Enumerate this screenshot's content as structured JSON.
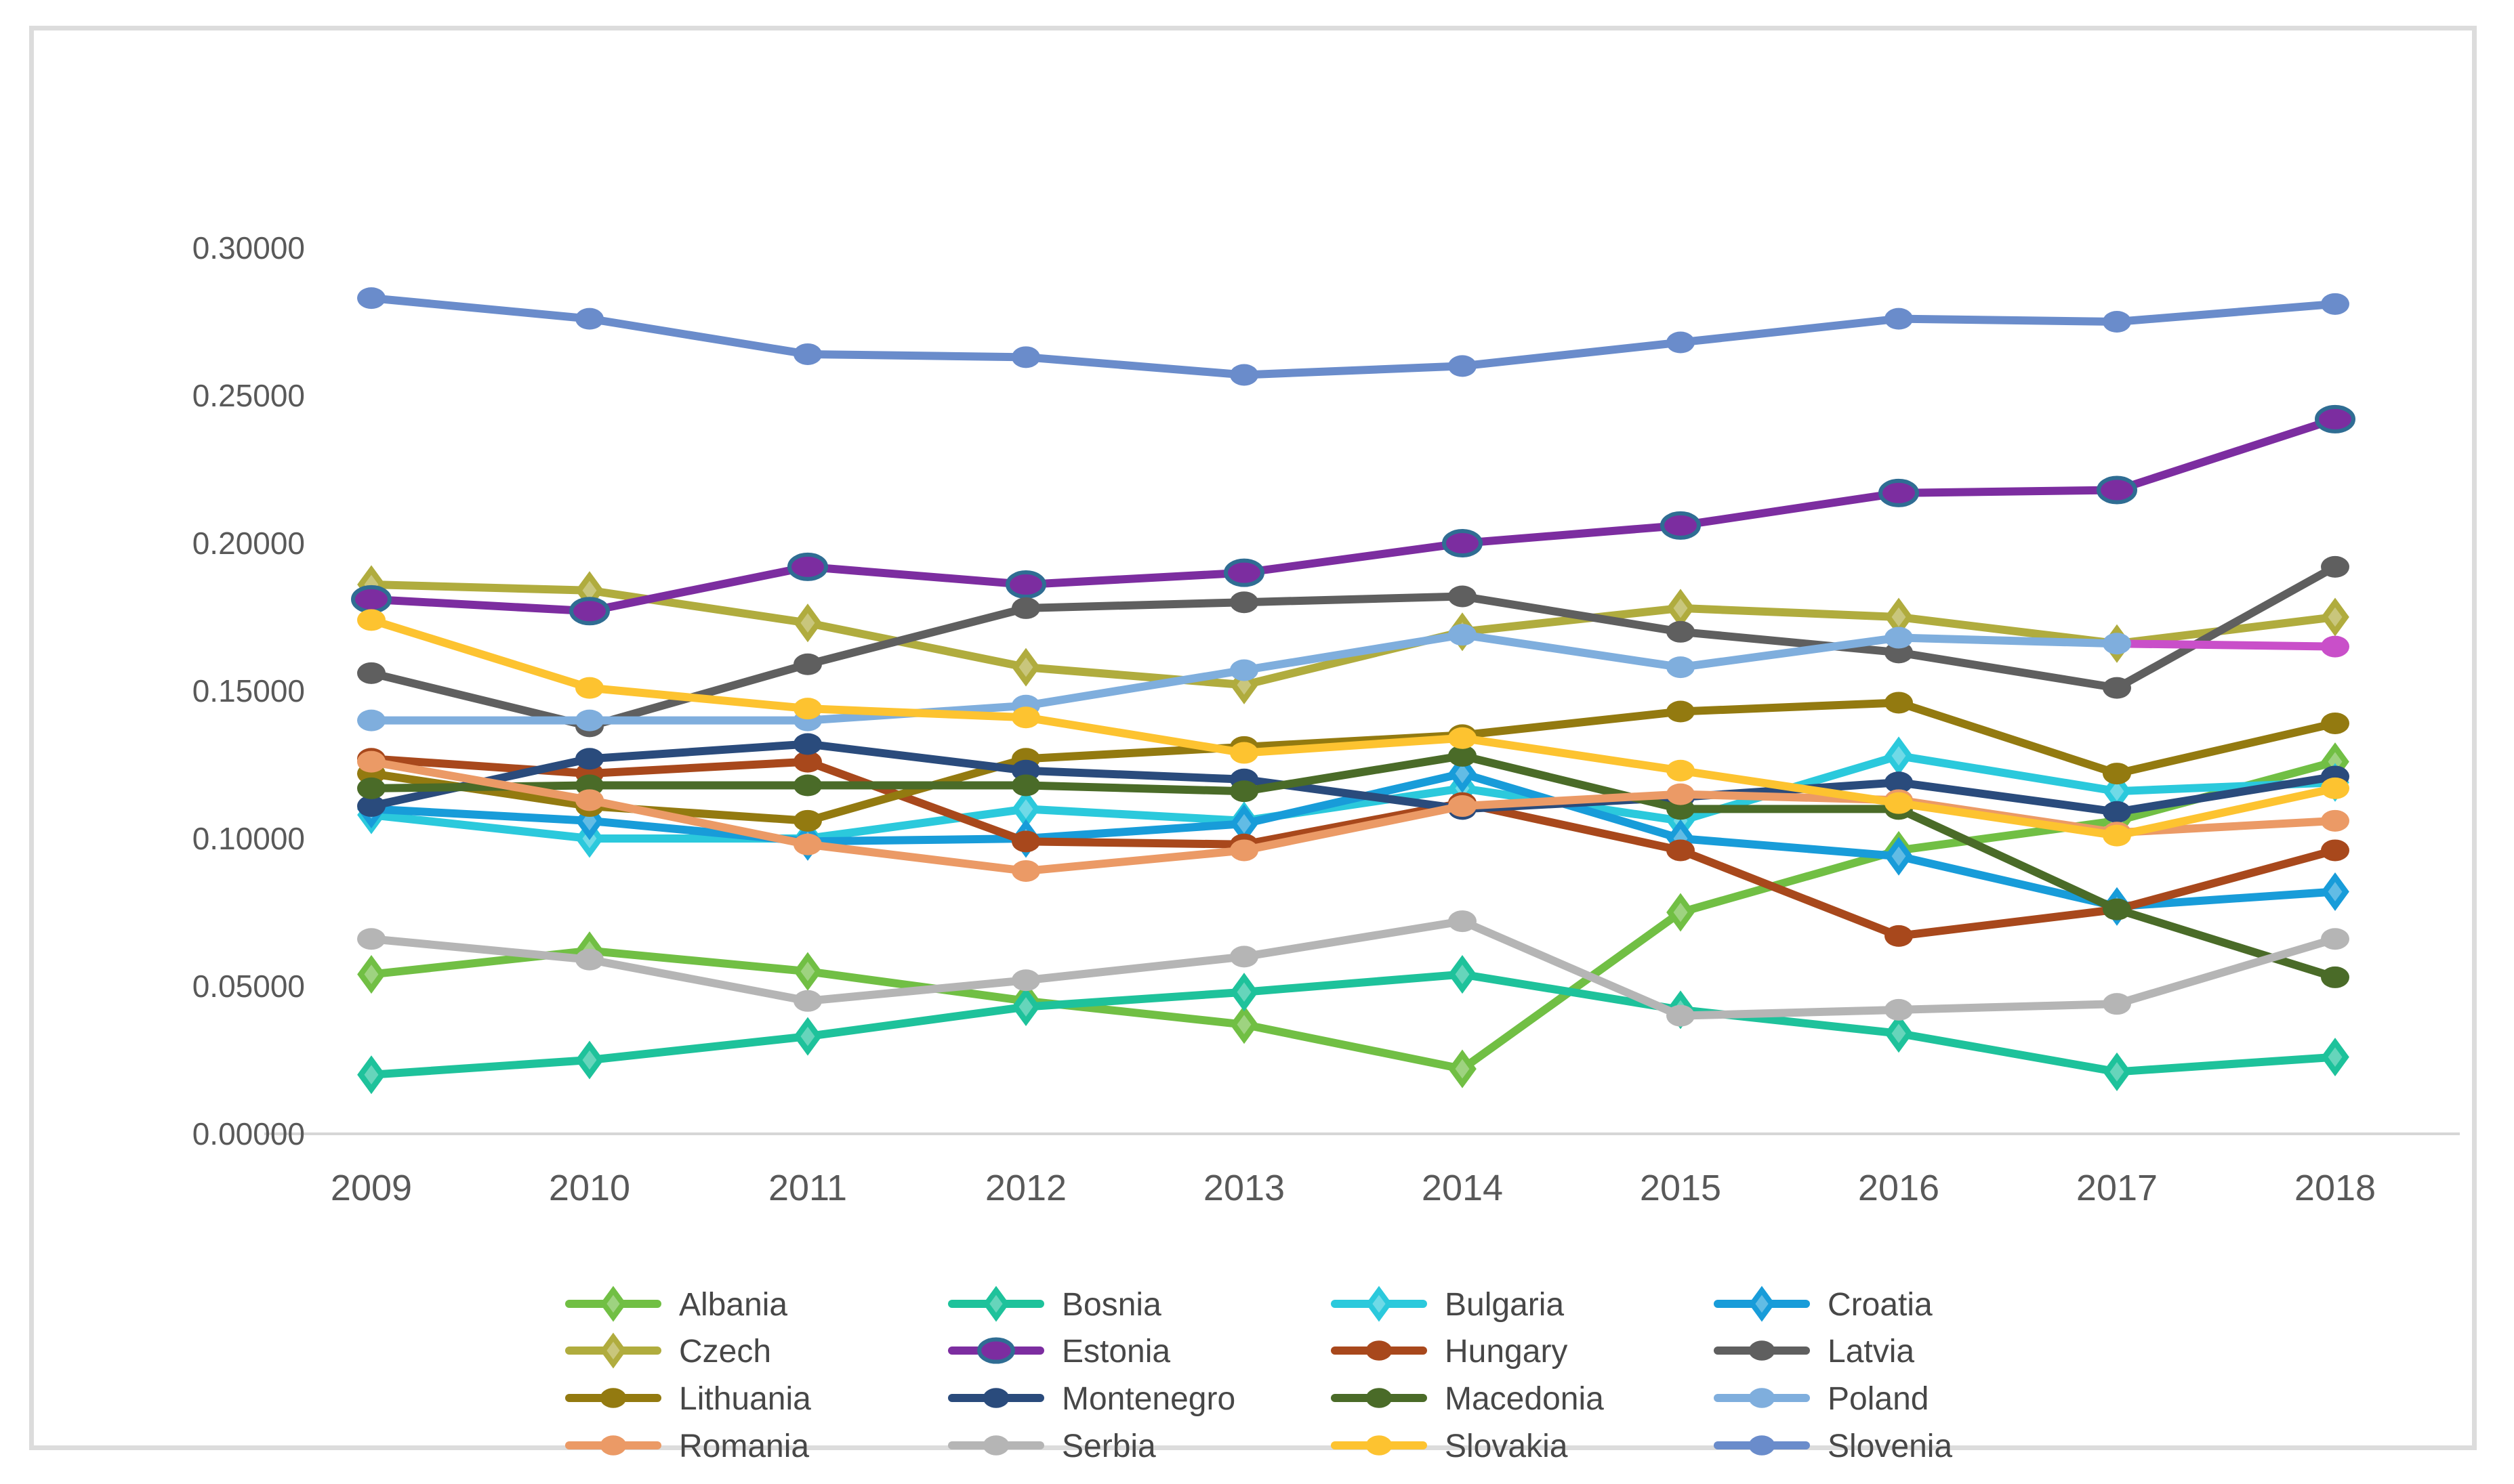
{
  "chart_data": {
    "type": "line",
    "title": "",
    "xlabel": "",
    "ylabel": "",
    "x": [
      2009,
      2010,
      2011,
      2012,
      2013,
      2014,
      2015,
      2016,
      2017,
      2018
    ],
    "ylim": [
      0.0,
      0.3
    ],
    "ytick_labels": [
      "0.00000",
      "0.05000",
      "0.10000",
      "0.15000",
      "0.20000",
      "0.25000",
      "0.30000"
    ],
    "grid": "off",
    "legend_position": "bottom",
    "legend_columns": 4,
    "layout_colors": {
      "axis_line": "#d6d6d6",
      "tick_text": "#595959",
      "legend_text": "#474747",
      "frame_border": "#dcdcdc",
      "background": "#ffffff"
    },
    "series": [
      {
        "name": "Albania",
        "color": "#71bf44",
        "marker": "diamond",
        "values": [
          0.054,
          0.062,
          0.055,
          0.045,
          0.037,
          0.022,
          0.075,
          0.096,
          0.106,
          0.126
        ]
      },
      {
        "name": "Bosnia",
        "color": "#1ec29b",
        "marker": "diamond",
        "values": [
          0.02,
          0.025,
          0.033,
          0.043,
          0.048,
          0.054,
          0.042,
          0.034,
          0.021,
          0.026
        ]
      },
      {
        "name": "Bulgaria",
        "color": "#2bc9dc",
        "marker": "diamond",
        "values": [
          0.108,
          0.1,
          0.1,
          0.11,
          0.106,
          0.117,
          0.106,
          0.128,
          0.116,
          0.119
        ]
      },
      {
        "name": "Croatia",
        "color": "#189cd9",
        "marker": "diamond",
        "values": [
          0.11,
          0.106,
          0.099,
          0.1,
          0.105,
          0.122,
          0.1,
          0.094,
          0.077,
          0.082
        ]
      },
      {
        "name": "Czech",
        "color": "#b0ac3e",
        "marker": "diamond",
        "values": [
          0.186,
          0.184,
          0.173,
          0.158,
          0.152,
          0.17,
          0.178,
          0.175,
          0.166,
          0.175
        ]
      },
      {
        "name": "Estonia",
        "color": "#7c2da0",
        "marker": "ring",
        "marker_ring_color": "#2f6d93",
        "values": [
          0.181,
          0.177,
          0.192,
          0.186,
          0.19,
          0.2,
          0.206,
          0.217,
          0.218,
          0.242
        ]
      },
      {
        "name": "Hungary",
        "color": "#a8481c",
        "marker": "circle",
        "values": [
          0.127,
          0.122,
          0.126,
          0.099,
          0.098,
          0.112,
          0.096,
          0.067,
          0.076,
          0.096
        ]
      },
      {
        "name": "Latvia",
        "color": "#5f5f5f",
        "marker": "circle",
        "values": [
          0.156,
          0.138,
          0.159,
          0.178,
          0.18,
          0.182,
          0.17,
          0.163,
          0.151,
          0.192
        ]
      },
      {
        "name": "Lithuania",
        "color": "#937a10",
        "marker": "circle",
        "values": [
          0.122,
          0.111,
          0.106,
          0.127,
          0.131,
          0.135,
          0.143,
          0.146,
          0.122,
          0.139
        ]
      },
      {
        "name": "Montenegro",
        "color": "#2a4b7c",
        "marker": "circle",
        "values": [
          0.111,
          0.127,
          0.132,
          0.123,
          0.12,
          0.11,
          0.114,
          0.119,
          0.109,
          0.121
        ]
      },
      {
        "name": "Macedonia",
        "color": "#4a6b28",
        "marker": "circle",
        "values": [
          0.117,
          0.118,
          0.118,
          0.118,
          0.116,
          0.128,
          0.11,
          0.11,
          0.076,
          0.053
        ]
      },
      {
        "name": "Poland",
        "color": "#7faedd",
        "marker": "circle",
        "highlight_last_segment": "#c94fc9",
        "values": [
          0.14,
          0.14,
          0.14,
          0.145,
          0.157,
          0.169,
          0.158,
          0.168,
          0.166,
          0.165
        ]
      },
      {
        "name": "Romania",
        "color": "#eb9a66",
        "marker": "circle",
        "values": [
          0.126,
          0.113,
          0.098,
          0.089,
          0.096,
          0.111,
          0.115,
          0.113,
          0.102,
          0.106
        ]
      },
      {
        "name": "Serbia",
        "color": "#b5b5b5",
        "marker": "circle",
        "values": [
          0.066,
          0.059,
          0.045,
          0.052,
          0.06,
          0.072,
          0.04,
          0.042,
          0.044,
          0.066
        ]
      },
      {
        "name": "Slovakia",
        "color": "#fdc330",
        "marker": "circle",
        "values": [
          0.174,
          0.151,
          0.144,
          0.141,
          0.129,
          0.134,
          0.123,
          0.112,
          0.101,
          0.117
        ]
      },
      {
        "name": "Slovenia",
        "color": "#6a8ccb",
        "marker": "circle",
        "values": [
          0.283,
          0.276,
          0.264,
          0.263,
          0.257,
          0.26,
          0.268,
          0.276,
          0.275,
          0.281
        ]
      }
    ]
  }
}
